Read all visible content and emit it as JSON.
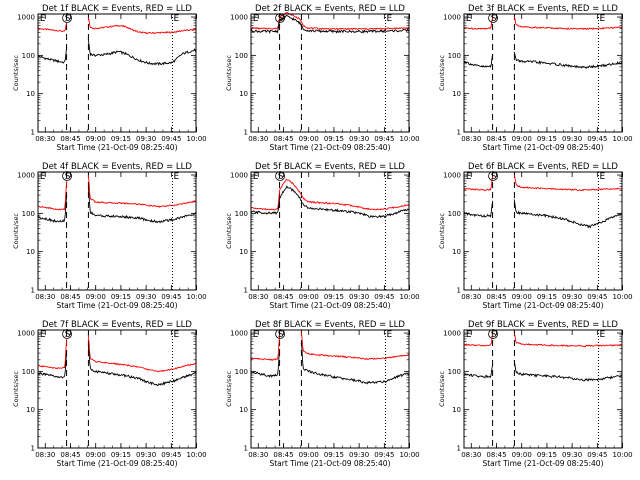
{
  "chart_data": [
    {
      "type": "line",
      "title": "Det 1f BLACK = Events, RED = LLD",
      "xlabel": "Start Time (21-Oct-09 08:25:40)",
      "ylabel": "Counts/sec",
      "x_ticks": [
        "08:30",
        "08:45",
        "09:00",
        "09:15",
        "09:30",
        "09:45",
        "10:00"
      ],
      "y_ticks": [
        "1",
        "10",
        "100",
        "1000"
      ],
      "xlim_minutes": [
        0,
        94
      ],
      "ylim": [
        1,
        1200
      ],
      "yscale": "log",
      "markers": [
        {
          "label": "E",
          "t": 0.5
        },
        {
          "label": "S",
          "t": 17
        },
        {
          "label": "E",
          "t": 80
        }
      ],
      "dashed_lines": [
        17,
        30
      ],
      "dotted_lines": [
        80
      ],
      "series": [
        {
          "color": "#ff0000",
          "gap": [
            17,
            30
          ],
          "x": [
            0,
            6,
            12,
            16,
            17,
            30,
            31,
            33,
            40,
            48,
            52,
            60,
            66,
            72,
            80,
            86,
            94
          ],
          "y": [
            500,
            470,
            440,
            420,
            700,
            980,
            560,
            500,
            540,
            600,
            560,
            400,
            380,
            390,
            400,
            440,
            470
          ]
        },
        {
          "color": "#000000",
          "gap": [
            17,
            30
          ],
          "x": [
            0,
            6,
            12,
            16,
            17,
            30,
            31,
            33,
            40,
            48,
            52,
            60,
            66,
            72,
            80,
            86,
            94
          ],
          "y": [
            95,
            80,
            70,
            65,
            160,
            260,
            110,
            100,
            105,
            125,
            110,
            75,
            62,
            60,
            65,
            110,
            140
          ]
        }
      ]
    },
    {
      "type": "line",
      "title": "Det 2f BLACK = Events, RED = LLD",
      "xlabel": "Start Time (21-Oct-09 08:25:40)",
      "ylabel": "Counts/sec",
      "x_ticks": [
        "08:30",
        "08:45",
        "09:00",
        "09:15",
        "09:30",
        "09:45",
        "10:00"
      ],
      "y_ticks": [
        "1",
        "10",
        "100",
        "1000"
      ],
      "xlim_minutes": [
        0,
        94
      ],
      "ylim": [
        1,
        1200
      ],
      "yscale": "log",
      "markers": [
        {
          "label": "E",
          "t": 0.5
        },
        {
          "label": "S",
          "t": 17
        },
        {
          "label": "E",
          "t": 80
        }
      ],
      "dashed_lines": [
        17,
        30
      ],
      "dotted_lines": [
        80
      ],
      "series": [
        {
          "color": "#ff0000",
          "gap": [],
          "x": [
            0,
            6,
            12,
            16,
            17,
            21,
            25,
            29,
            31,
            34,
            40,
            50,
            60,
            70,
            80,
            94
          ],
          "y": [
            520,
            500,
            500,
            510,
            1000,
            1300,
            1100,
            900,
            600,
            520,
            500,
            490,
            490,
            490,
            500,
            520
          ]
        },
        {
          "color": "#000000",
          "gap": [],
          "x": [
            0,
            6,
            12,
            16,
            17,
            21,
            25,
            29,
            31,
            34,
            40,
            50,
            60,
            70,
            80,
            94
          ],
          "y": [
            440,
            420,
            420,
            430,
            800,
            1050,
            900,
            700,
            500,
            440,
            430,
            420,
            420,
            420,
            430,
            450
          ]
        }
      ]
    },
    {
      "type": "line",
      "title": "Det 3f BLACK = Events, RED = LLD",
      "xlabel": "Start Time (21-Oct-09 08:25:40)",
      "ylabel": "Counts/sec",
      "x_ticks": [
        "08:30",
        "08:45",
        "09:00",
        "09:15",
        "09:30",
        "09:45",
        "10:00"
      ],
      "y_ticks": [
        "1",
        "10",
        "100",
        "1000"
      ],
      "xlim_minutes": [
        0,
        94
      ],
      "ylim": [
        1,
        1200
      ],
      "yscale": "log",
      "markers": [
        {
          "label": "E",
          "t": 0.5
        },
        {
          "label": "S",
          "t": 17
        },
        {
          "label": "E",
          "t": 80
        }
      ],
      "dashed_lines": [
        17,
        30
      ],
      "dotted_lines": [
        80
      ],
      "series": [
        {
          "color": "#ff0000",
          "gap": [
            17,
            30
          ],
          "x": [
            0,
            6,
            12,
            16,
            17,
            30,
            31,
            34,
            40,
            50,
            60,
            70,
            80,
            94
          ],
          "y": [
            520,
            500,
            500,
            510,
            1000,
            1000,
            620,
            560,
            540,
            520,
            500,
            490,
            500,
            540
          ]
        },
        {
          "color": "#000000",
          "gap": [
            17,
            30
          ],
          "x": [
            0,
            6,
            12,
            16,
            17,
            30,
            31,
            34,
            40,
            50,
            60,
            70,
            80,
            94
          ],
          "y": [
            70,
            55,
            50,
            52,
            110,
            120,
            75,
            70,
            68,
            62,
            55,
            48,
            52,
            65
          ]
        }
      ]
    },
    {
      "type": "line",
      "title": "Det 4f BLACK = Events, RED = LLD",
      "xlabel": "Start Time (21-Oct-09 08:25:40)",
      "ylabel": "Counts/sec",
      "x_ticks": [
        "08:30",
        "08:45",
        "09:00",
        "09:15",
        "09:30",
        "09:45",
        "10:00"
      ],
      "y_ticks": [
        "1",
        "10",
        "100",
        "1000"
      ],
      "xlim_minutes": [
        0,
        94
      ],
      "ylim": [
        1,
        1200
      ],
      "yscale": "log",
      "markers": [
        {
          "label": "E",
          "t": 0.5
        },
        {
          "label": "S",
          "t": 17
        },
        {
          "label": "E",
          "t": 80
        }
      ],
      "dashed_lines": [
        17,
        30
      ],
      "dotted_lines": [
        80
      ],
      "series": [
        {
          "color": "#ff0000",
          "gap": [
            17,
            30
          ],
          "x": [
            0,
            6,
            12,
            16,
            17,
            30,
            31,
            34,
            40,
            50,
            60,
            66,
            72,
            80,
            88,
            94
          ],
          "y": [
            150,
            140,
            125,
            130,
            700,
            1000,
            250,
            200,
            190,
            185,
            175,
            160,
            150,
            160,
            185,
            210
          ]
        },
        {
          "color": "#000000",
          "gap": [
            17,
            30
          ],
          "x": [
            0,
            6,
            12,
            16,
            17,
            30,
            31,
            34,
            40,
            50,
            60,
            66,
            72,
            80,
            88,
            94
          ],
          "y": [
            80,
            70,
            60,
            65,
            300,
            480,
            110,
            90,
            85,
            82,
            75,
            65,
            60,
            68,
            85,
            100
          ]
        }
      ]
    },
    {
      "type": "line",
      "title": "Det 5f BLACK = Events, RED = LLD",
      "xlabel": "Start Time (21-Oct-09 08:25:40)",
      "ylabel": "Counts/sec",
      "x_ticks": [
        "08:30",
        "08:45",
        "09:00",
        "09:15",
        "09:30",
        "09:45",
        "10:00"
      ],
      "y_ticks": [
        "1",
        "10",
        "100",
        "1000"
      ],
      "xlim_minutes": [
        0,
        94
      ],
      "ylim": [
        1,
        1200
      ],
      "yscale": "log",
      "markers": [
        {
          "label": "E",
          "t": 0.5
        },
        {
          "label": "S",
          "t": 17
        },
        {
          "label": "E",
          "t": 80
        }
      ],
      "dashed_lines": [
        17,
        30
      ],
      "dotted_lines": [
        80
      ],
      "series": [
        {
          "color": "#ff0000",
          "gap": [],
          "x": [
            0,
            6,
            12,
            16,
            17,
            21,
            25,
            29,
            31,
            34,
            40,
            50,
            60,
            66,
            72,
            80,
            88,
            94
          ],
          "y": [
            140,
            130,
            125,
            130,
            400,
            800,
            600,
            350,
            250,
            200,
            190,
            180,
            160,
            140,
            125,
            130,
            150,
            170
          ]
        },
        {
          "color": "#000000",
          "gap": [],
          "x": [
            0,
            6,
            12,
            16,
            17,
            21,
            25,
            29,
            31,
            34,
            40,
            50,
            60,
            66,
            72,
            80,
            88,
            94
          ],
          "y": [
            110,
            105,
            100,
            105,
            250,
            500,
            400,
            250,
            170,
            140,
            130,
            120,
            110,
            95,
            80,
            85,
            110,
            130
          ]
        }
      ]
    },
    {
      "type": "line",
      "title": "Det 6f BLACK = Events, RED = LLD",
      "xlabel": "Start Time (21-Oct-09 08:25:40)",
      "ylabel": "Counts/sec",
      "x_ticks": [
        "08:30",
        "08:45",
        "09:00",
        "09:15",
        "09:30",
        "09:45",
        "10:00"
      ],
      "y_ticks": [
        "1",
        "10",
        "100",
        "1000"
      ],
      "xlim_minutes": [
        0,
        94
      ],
      "ylim": [
        1,
        1200
      ],
      "yscale": "log",
      "markers": [
        {
          "label": "E",
          "t": 0.5
        },
        {
          "label": "S",
          "t": 17
        },
        {
          "label": "E",
          "t": 80
        }
      ],
      "dashed_lines": [
        17,
        30
      ],
      "dotted_lines": [
        80
      ],
      "series": [
        {
          "color": "#ff0000",
          "gap": [
            17,
            30
          ],
          "x": [
            0,
            6,
            12,
            16,
            17,
            30,
            31,
            34,
            40,
            50,
            60,
            70,
            80,
            94
          ],
          "y": [
            440,
            420,
            410,
            420,
            900,
            1000,
            550,
            480,
            460,
            440,
            420,
            410,
            420,
            450
          ]
        },
        {
          "color": "#000000",
          "gap": [
            17,
            30
          ],
          "x": [
            0,
            6,
            12,
            16,
            17,
            30,
            31,
            34,
            40,
            50,
            60,
            70,
            75,
            80,
            94
          ],
          "y": [
            100,
            90,
            85,
            88,
            200,
            220,
            110,
            100,
            95,
            85,
            70,
            50,
            45,
            55,
            100
          ]
        }
      ]
    },
    {
      "type": "line",
      "title": "Det 7f BLACK = Events, RED = LLD",
      "xlabel": "Start Time (21-Oct-09 08:25:40)",
      "ylabel": "Counts/sec",
      "x_ticks": [
        "08:30",
        "08:45",
        "09:00",
        "09:15",
        "09:30",
        "09:45",
        "10:00"
      ],
      "y_ticks": [
        "1",
        "10",
        "100",
        "1000"
      ],
      "xlim_minutes": [
        0,
        94
      ],
      "ylim": [
        1,
        1200
      ],
      "yscale": "log",
      "markers": [
        {
          "label": "E",
          "t": 0.5
        },
        {
          "label": "S",
          "t": 17
        },
        {
          "label": "E",
          "t": 80
        }
      ],
      "dashed_lines": [
        17,
        30
      ],
      "dotted_lines": [
        80
      ],
      "series": [
        {
          "color": "#ff0000",
          "gap": [
            17,
            30
          ],
          "x": [
            0,
            6,
            12,
            16,
            17,
            30,
            31,
            34,
            40,
            50,
            60,
            66,
            72,
            80,
            88,
            94
          ],
          "y": [
            140,
            130,
            120,
            125,
            700,
            900,
            220,
            180,
            170,
            150,
            130,
            110,
            100,
            115,
            140,
            160
          ]
        },
        {
          "color": "#000000",
          "gap": [
            17,
            30
          ],
          "x": [
            0,
            6,
            12,
            16,
            17,
            30,
            31,
            34,
            40,
            50,
            60,
            66,
            72,
            80,
            88,
            94
          ],
          "y": [
            90,
            80,
            70,
            72,
            350,
            500,
            120,
            100,
            90,
            80,
            65,
            50,
            45,
            55,
            75,
            90
          ]
        }
      ]
    },
    {
      "type": "line",
      "title": "Det 8f BLACK = Events, RED = LLD",
      "xlabel": "Start Time (21-Oct-09 08:25:40)",
      "ylabel": "Counts/sec",
      "x_ticks": [
        "08:30",
        "08:45",
        "09:00",
        "09:15",
        "09:30",
        "09:45",
        "10:00"
      ],
      "y_ticks": [
        "1",
        "10",
        "100",
        "1000"
      ],
      "xlim_minutes": [
        0,
        94
      ],
      "ylim": [
        1,
        1200
      ],
      "yscale": "log",
      "markers": [
        {
          "label": "E",
          "t": 0.5
        },
        {
          "label": "S",
          "t": 17
        },
        {
          "label": "E",
          "t": 80
        }
      ],
      "dashed_lines": [
        17,
        30
      ],
      "dotted_lines": [
        80
      ],
      "series": [
        {
          "color": "#ff0000",
          "gap": [
            17,
            30
          ],
          "x": [
            0,
            6,
            12,
            16,
            17,
            30,
            31,
            34,
            40,
            50,
            60,
            70,
            80,
            88,
            94
          ],
          "y": [
            220,
            210,
            200,
            210,
            900,
            1100,
            350,
            290,
            270,
            250,
            230,
            210,
            220,
            250,
            270
          ]
        },
        {
          "color": "#000000",
          "gap": [
            17,
            30
          ],
          "x": [
            0,
            6,
            12,
            16,
            17,
            30,
            31,
            34,
            40,
            50,
            60,
            70,
            80,
            88,
            94
          ],
          "y": [
            95,
            85,
            75,
            80,
            400,
            600,
            120,
            100,
            85,
            70,
            60,
            50,
            55,
            75,
            90
          ]
        }
      ]
    },
    {
      "type": "line",
      "title": "Det 9f BLACK = Events, RED = LLD",
      "xlabel": "Start Time (21-Oct-09 08:25:40)",
      "ylabel": "Counts/sec",
      "x_ticks": [
        "08:30",
        "08:45",
        "09:00",
        "09:15",
        "09:30",
        "09:45",
        "10:00"
      ],
      "y_ticks": [
        "1",
        "10",
        "100",
        "1000"
      ],
      "xlim_minutes": [
        0,
        94
      ],
      "ylim": [
        1,
        1200
      ],
      "yscale": "log",
      "markers": [
        {
          "label": "E",
          "t": 0.5
        },
        {
          "label": "S",
          "t": 17
        },
        {
          "label": "E",
          "t": 80
        }
      ],
      "dashed_lines": [
        17,
        30
      ],
      "dotted_lines": [
        80
      ],
      "series": [
        {
          "color": "#ff0000",
          "gap": [
            17,
            30
          ],
          "x": [
            0,
            6,
            12,
            16,
            17,
            30,
            31,
            34,
            40,
            50,
            60,
            70,
            80,
            94
          ],
          "y": [
            500,
            480,
            470,
            480,
            900,
            1000,
            560,
            520,
            500,
            480,
            470,
            460,
            470,
            480
          ]
        },
        {
          "color": "#000000",
          "gap": [
            17,
            30
          ],
          "x": [
            0,
            6,
            12,
            16,
            17,
            30,
            31,
            34,
            40,
            50,
            60,
            70,
            80,
            88,
            94
          ],
          "y": [
            85,
            78,
            72,
            76,
            150,
            180,
            95,
            85,
            80,
            75,
            70,
            60,
            62,
            70,
            75
          ]
        }
      ]
    }
  ]
}
